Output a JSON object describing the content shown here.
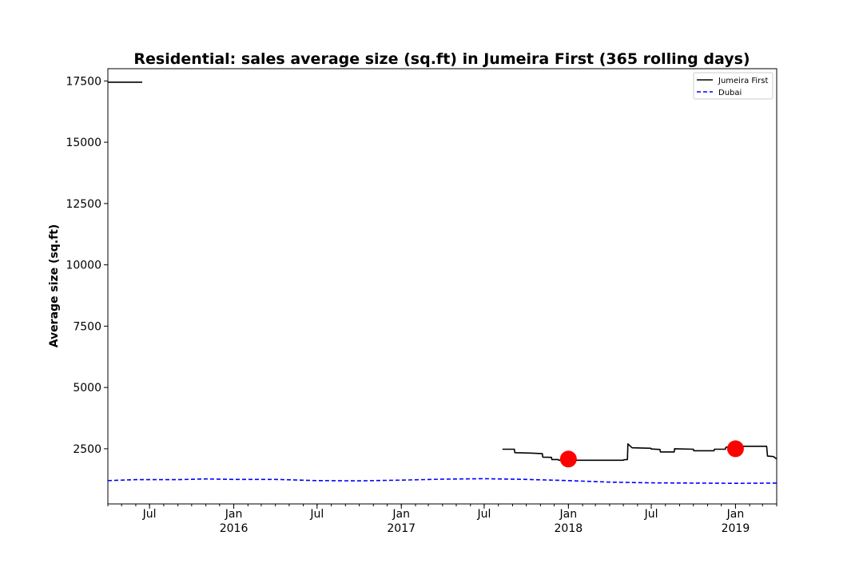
{
  "chart_data": {
    "type": "line",
    "title": "Residential: sales average size (sq.ft) in Jumeira First (365 rolling days)",
    "xlabel": "",
    "ylabel": "Average size (sq.ft)",
    "xlim": [
      "2015-04-01",
      "2019-04-01"
    ],
    "ylim": [
      250,
      18000
    ],
    "yticks": [
      2500,
      5000,
      7500,
      10000,
      12500,
      15000,
      17500
    ],
    "xticks": [
      {
        "date": "2015-07-01",
        "label": "Jul",
        "year": ""
      },
      {
        "date": "2016-01-01",
        "label": "Jan",
        "year": "2016"
      },
      {
        "date": "2016-07-01",
        "label": "Jul",
        "year": ""
      },
      {
        "date": "2017-01-01",
        "label": "Jan",
        "year": "2017"
      },
      {
        "date": "2017-07-01",
        "label": "Jul",
        "year": ""
      },
      {
        "date": "2018-01-01",
        "label": "Jan",
        "year": "2018"
      },
      {
        "date": "2018-07-01",
        "label": "Jul",
        "year": ""
      },
      {
        "date": "2019-01-01",
        "label": "Jan",
        "year": "2019"
      }
    ],
    "grid": false,
    "legend_position": "top-right",
    "series": [
      {
        "name": "Jumeira First",
        "color": "#000000",
        "style": "solid",
        "segments": [
          [
            [
              "2015-04-01",
              17450
            ],
            [
              "2015-06-15",
              17450
            ]
          ],
          [
            [
              "2017-08-10",
              2480
            ],
            [
              "2017-09-05",
              2480
            ],
            [
              "2017-09-06",
              2340
            ],
            [
              "2017-10-15",
              2320
            ],
            [
              "2017-11-05",
              2300
            ],
            [
              "2017-11-06",
              2160
            ],
            [
              "2017-11-25",
              2150
            ],
            [
              "2017-11-26",
              2060
            ],
            [
              "2017-12-10",
              2060
            ],
            [
              "2017-12-11",
              2030
            ],
            [
              "2018-05-01",
              2030
            ],
            [
              "2018-05-02",
              2050
            ],
            [
              "2018-05-10",
              2060
            ],
            [
              "2018-05-11",
              2700
            ],
            [
              "2018-05-20",
              2540
            ],
            [
              "2018-06-30",
              2520
            ],
            [
              "2018-07-01",
              2490
            ],
            [
              "2018-07-20",
              2470
            ],
            [
              "2018-07-21",
              2370
            ],
            [
              "2018-08-20",
              2370
            ],
            [
              "2018-08-21",
              2500
            ],
            [
              "2018-10-01",
              2480
            ],
            [
              "2018-10-02",
              2420
            ],
            [
              "2018-11-15",
              2420
            ],
            [
              "2018-11-16",
              2480
            ],
            [
              "2018-12-10",
              2480
            ],
            [
              "2018-12-11",
              2560
            ],
            [
              "2018-12-25",
              2600
            ],
            [
              "2019-03-10",
              2600
            ],
            [
              "2019-03-12",
              2200
            ],
            [
              "2019-03-25",
              2180
            ],
            [
              "2019-04-01",
              2080
            ]
          ]
        ]
      },
      {
        "name": "Dubai",
        "color": "#0000ff",
        "style": "dashed",
        "segments": [
          [
            [
              "2015-04-01",
              1200
            ],
            [
              "2015-06-01",
              1240
            ],
            [
              "2015-09-01",
              1240
            ],
            [
              "2015-11-01",
              1270
            ],
            [
              "2016-01-01",
              1250
            ],
            [
              "2016-04-01",
              1250
            ],
            [
              "2016-07-01",
              1200
            ],
            [
              "2016-10-01",
              1190
            ],
            [
              "2017-01-01",
              1220
            ],
            [
              "2017-04-01",
              1260
            ],
            [
              "2017-07-01",
              1280
            ],
            [
              "2017-10-01",
              1250
            ],
            [
              "2018-01-01",
              1200
            ],
            [
              "2018-04-01",
              1140
            ],
            [
              "2018-07-01",
              1110
            ],
            [
              "2018-10-01",
              1100
            ],
            [
              "2019-01-01",
              1090
            ],
            [
              "2019-04-01",
              1100
            ]
          ]
        ]
      }
    ],
    "markers": [
      {
        "date": "2018-01-01",
        "value": 2080,
        "color": "#ff0000"
      },
      {
        "date": "2019-01-01",
        "value": 2500,
        "color": "#ff0000"
      }
    ]
  }
}
